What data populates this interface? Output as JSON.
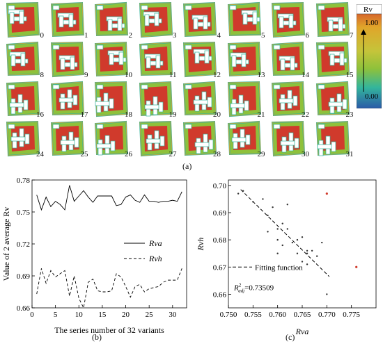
{
  "panel_a": {
    "label": "(a)",
    "tiles": [
      "0",
      "1",
      "2",
      "3",
      "4",
      "5",
      "6",
      "7",
      "8",
      "9",
      "10",
      "11",
      "12",
      "13",
      "14",
      "15",
      "16",
      "17",
      "18",
      "19",
      "20",
      "21",
      "22",
      "23",
      "24",
      "25",
      "26",
      "27",
      "28",
      "29",
      "30",
      "31"
    ],
    "legend": {
      "title": "Rv",
      "max": "1.00",
      "min": "0.00"
    },
    "colors": {
      "high": "#d03a2c",
      "mid": "#e0a52a",
      "green": "#8ec13b",
      "teal": "#33b59c",
      "low": "#2a5aa8"
    }
  },
  "panel_b": {
    "label": "(b)"
  },
  "panel_c": {
    "label": "(c)"
  },
  "chart_data": [
    {
      "type": "line",
      "xlabel": "The series number of 32 variants",
      "ylabel": "Value of 2 average Rv",
      "xlim": [
        0,
        33
      ],
      "ylim": [
        0.66,
        0.78
      ],
      "xticks": [
        "0",
        "5",
        "10",
        "15",
        "20",
        "25",
        "30"
      ],
      "yticks": [
        "0.66",
        "0.69",
        "0.72",
        "0.75",
        "0.78"
      ],
      "legend_placement": "center-right",
      "x": [
        1,
        2,
        3,
        4,
        5,
        6,
        7,
        8,
        9,
        10,
        11,
        12,
        13,
        14,
        15,
        16,
        17,
        18,
        19,
        20,
        21,
        22,
        23,
        24,
        25,
        26,
        27,
        28,
        29,
        30,
        31,
        32
      ],
      "series": [
        {
          "name": "Rva",
          "style": "solid",
          "values": [
            0.766,
            0.752,
            0.764,
            0.755,
            0.76,
            0.757,
            0.752,
            0.775,
            0.76,
            0.765,
            0.77,
            0.764,
            0.759,
            0.765,
            0.765,
            0.765,
            0.765,
            0.756,
            0.757,
            0.764,
            0.766,
            0.761,
            0.759,
            0.766,
            0.76,
            0.76,
            0.759,
            0.76,
            0.76,
            0.761,
            0.76,
            0.769
          ]
        },
        {
          "name": "Rvh",
          "style": "dashed",
          "values": [
            0.673,
            0.697,
            0.683,
            0.695,
            0.689,
            0.692,
            0.695,
            0.671,
            0.69,
            0.669,
            0.66,
            0.684,
            0.687,
            0.676,
            0.675,
            0.675,
            0.676,
            0.692,
            0.689,
            0.68,
            0.67,
            0.68,
            0.682,
            0.675,
            0.678,
            0.679,
            0.68,
            0.684,
            0.686,
            0.686,
            0.686,
            0.697
          ]
        }
      ]
    },
    {
      "type": "scatter",
      "xlabel": "Rva",
      "ylabel": "Rvh",
      "xlim": [
        0.75,
        0.78
      ],
      "ylim": [
        0.655,
        0.702
      ],
      "xticks": [
        "0.750",
        "0.755",
        "0.760",
        "0.765",
        "0.770",
        "0.775"
      ],
      "yticks": [
        "0.66",
        "0.67",
        "0.68",
        "0.69",
        "0.70"
      ],
      "legend_label": "Fitting function",
      "r2": "=0.73509",
      "points": [
        [
          0.752,
          0.697
        ],
        [
          0.753,
          0.698
        ],
        [
          0.755,
          0.694
        ],
        [
          0.757,
          0.695
        ],
        [
          0.758,
          0.689
        ],
        [
          0.758,
          0.683
        ],
        [
          0.759,
          0.692
        ],
        [
          0.76,
          0.684
        ],
        [
          0.76,
          0.68
        ],
        [
          0.76,
          0.675
        ],
        [
          0.761,
          0.686
        ],
        [
          0.761,
          0.678
        ],
        [
          0.762,
          0.693
        ],
        [
          0.762,
          0.684
        ],
        [
          0.763,
          0.679
        ],
        [
          0.764,
          0.68
        ],
        [
          0.764,
          0.675
        ],
        [
          0.765,
          0.681
        ],
        [
          0.765,
          0.672
        ],
        [
          0.766,
          0.675
        ],
        [
          0.766,
          0.671
        ],
        [
          0.766,
          0.676
        ],
        [
          0.767,
          0.676
        ],
        [
          0.768,
          0.674
        ],
        [
          0.769,
          0.679
        ],
        [
          0.77,
          0.66
        ]
      ],
      "outliers": [
        [
          0.77,
          0.697
        ],
        [
          0.776,
          0.67
        ]
      ],
      "outlier_color": "#d03a2c",
      "fit": [
        [
          0.7525,
          0.6985
        ],
        [
          0.7705,
          0.6665
        ]
      ]
    }
  ]
}
